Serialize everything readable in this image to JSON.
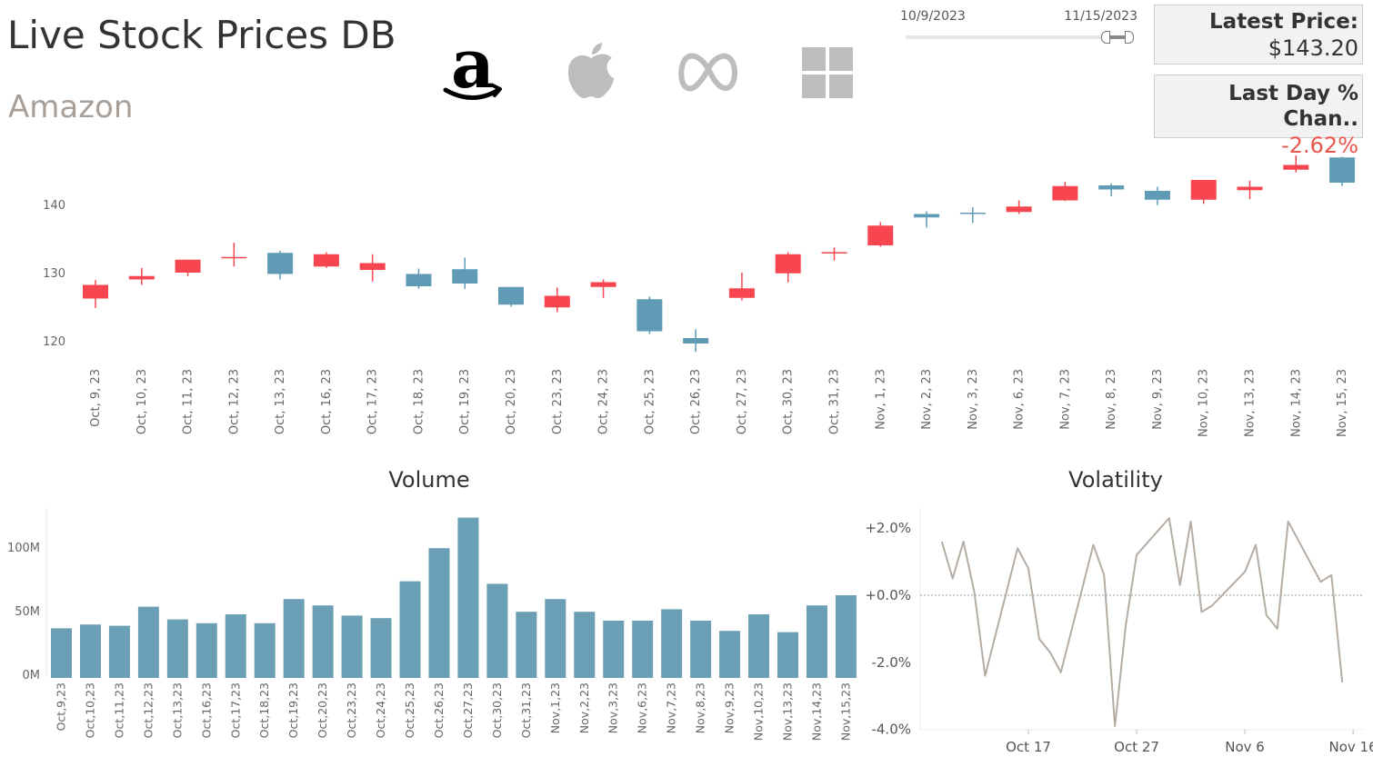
{
  "header": {
    "title": "Live Stock Prices DB",
    "company": "Amazon"
  },
  "logos": [
    {
      "name": "amazon-logo",
      "color": "#000000",
      "selected": true
    },
    {
      "name": "apple-logo",
      "color": "#bdbdbd",
      "selected": false
    },
    {
      "name": "meta-logo",
      "color": "#bdbdbd",
      "selected": false
    },
    {
      "name": "microsoft-logo",
      "color": "#bdbdbd",
      "selected": false
    }
  ],
  "date_filter": {
    "start": "10/9/2023",
    "end": "11/15/2023"
  },
  "kpis": {
    "latest_price": {
      "label": "Latest Price:",
      "value": "$143.20"
    },
    "last_day_change": {
      "label": "Last Day % Chan..",
      "value": "-2.62%",
      "color": "#e8564f"
    }
  },
  "colors": {
    "up": "#f7464f",
    "down": "#5f9bb5",
    "volume_bar": "#6a9fb5",
    "volatility_line": "#b5aca4"
  },
  "chart_data": [
    {
      "type": "candlestick",
      "yticks": [
        "120",
        "130",
        "140"
      ],
      "ylim": [
        116.5,
        148
      ],
      "categories": [
        "Oct, 9, 23",
        "Oct, 10, 23",
        "Oct, 11, 23",
        "Oct, 12, 23",
        "Oct, 13, 23",
        "Oct, 16, 23",
        "Oct, 17, 23",
        "Oct, 18, 23",
        "Oct, 19, 23",
        "Oct, 20, 23",
        "Oct, 23, 23",
        "Oct, 24, 23",
        "Oct, 25, 23",
        "Oct, 26, 23",
        "Oct, 27, 23",
        "Oct, 30, 23",
        "Oct, 31, 23",
        "Nov, 1, 23",
        "Nov, 2, 23",
        "Nov, 3, 23",
        "Nov, 6, 23",
        "Nov, 7, 23",
        "Nov, 8, 23",
        "Nov, 9, 23",
        "Nov, 10, 23",
        "Nov, 13, 23",
        "Nov, 14, 23",
        "Nov, 15, 23"
      ],
      "candles": [
        {
          "open": 126.2,
          "close": 128.2,
          "high": 128.9,
          "low": 124.8,
          "up": true
        },
        {
          "open": 129.0,
          "close": 129.5,
          "high": 130.7,
          "low": 128.2,
          "up": true
        },
        {
          "open": 130.0,
          "close": 131.9,
          "high": 131.9,
          "low": 129.5,
          "up": true
        },
        {
          "open": 132.3,
          "close": 132.3,
          "high": 134.4,
          "low": 130.9,
          "up": true
        },
        {
          "open": 132.9,
          "close": 129.8,
          "high": 133.2,
          "low": 129.0,
          "up": false
        },
        {
          "open": 130.9,
          "close": 132.7,
          "high": 133.0,
          "low": 130.7,
          "up": true
        },
        {
          "open": 130.4,
          "close": 131.4,
          "high": 132.7,
          "low": 128.7,
          "up": true
        },
        {
          "open": 129.8,
          "close": 128.0,
          "high": 130.6,
          "low": 127.6,
          "up": false
        },
        {
          "open": 130.5,
          "close": 128.4,
          "high": 132.2,
          "low": 127.6,
          "up": false
        },
        {
          "open": 127.9,
          "close": 125.3,
          "high": 127.9,
          "low": 125.0,
          "up": false
        },
        {
          "open": 124.9,
          "close": 126.6,
          "high": 127.8,
          "low": 124.2,
          "up": true
        },
        {
          "open": 127.9,
          "close": 128.6,
          "high": 129.0,
          "low": 126.3,
          "up": true
        },
        {
          "open": 126.1,
          "close": 121.4,
          "high": 126.5,
          "low": 121.0,
          "up": false
        },
        {
          "open": 120.4,
          "close": 119.6,
          "high": 121.7,
          "low": 118.4,
          "up": false
        },
        {
          "open": 126.3,
          "close": 127.7,
          "high": 130.0,
          "low": 125.9,
          "up": true
        },
        {
          "open": 129.9,
          "close": 132.7,
          "high": 133.0,
          "low": 128.6,
          "up": true
        },
        {
          "open": 132.9,
          "close": 133.0,
          "high": 133.7,
          "low": 131.8,
          "up": true
        },
        {
          "open": 134.0,
          "close": 136.9,
          "high": 137.4,
          "low": 133.8,
          "up": true
        },
        {
          "open": 138.6,
          "close": 138.1,
          "high": 139.0,
          "low": 136.6,
          "up": false
        },
        {
          "open": 138.8,
          "close": 138.6,
          "high": 139.6,
          "low": 137.3,
          "up": false
        },
        {
          "open": 138.9,
          "close": 139.7,
          "high": 140.6,
          "low": 138.6,
          "up": true
        },
        {
          "open": 140.6,
          "close": 142.7,
          "high": 143.3,
          "low": 140.5,
          "up": true
        },
        {
          "open": 142.8,
          "close": 142.2,
          "high": 143.1,
          "low": 141.2,
          "up": false
        },
        {
          "open": 142.0,
          "close": 140.7,
          "high": 142.6,
          "low": 139.9,
          "up": false
        },
        {
          "open": 140.7,
          "close": 143.6,
          "high": 143.6,
          "low": 140.1,
          "up": true
        },
        {
          "open": 142.1,
          "close": 142.6,
          "high": 143.5,
          "low": 140.8,
          "up": true
        },
        {
          "open": 145.1,
          "close": 145.8,
          "high": 147.2,
          "low": 144.7,
          "up": true
        },
        {
          "open": 146.9,
          "close": 143.2,
          "high": 147.0,
          "low": 142.7,
          "up": false
        }
      ]
    },
    {
      "type": "bar",
      "title": "Volume",
      "categories": [
        "Oct,9,23",
        "Oct,10,23",
        "Oct,11,23",
        "Oct,12,23",
        "Oct,13,23",
        "Oct,16,23",
        "Oct,17,23",
        "Oct,18,23",
        "Oct,19,23",
        "Oct,20,23",
        "Oct,23,23",
        "Oct,24,23",
        "Oct,25,23",
        "Oct,26,23",
        "Oct,27,23",
        "Oct,30,23",
        "Oct,31,23",
        "Nov,1,23",
        "Nov,2,23",
        "Nov,3,23",
        "Nov,6,23",
        "Nov,7,23",
        "Nov,8,23",
        "Nov,9,23",
        "Nov,10,23",
        "Nov,13,23",
        "Nov,14,23",
        "Nov,15,23"
      ],
      "values": [
        39,
        42,
        41,
        56,
        46,
        43,
        50,
        43,
        62,
        57,
        49,
        47,
        76,
        102,
        126,
        74,
        52,
        62,
        52,
        45,
        45,
        54,
        45,
        37,
        50,
        36,
        57,
        65
      ],
      "yticks": [
        "0M",
        "50M",
        "100M"
      ],
      "ylim": [
        0,
        128
      ]
    },
    {
      "type": "line",
      "title": "Volatility",
      "x": [
        "2023-10-09",
        "2023-10-10",
        "2023-10-11",
        "2023-10-12",
        "2023-10-13",
        "2023-10-16",
        "2023-10-17",
        "2023-10-18",
        "2023-10-19",
        "2023-10-20",
        "2023-10-23",
        "2023-10-24",
        "2023-10-25",
        "2023-10-26",
        "2023-10-27",
        "2023-10-30",
        "2023-10-31",
        "2023-11-01",
        "2023-11-02",
        "2023-11-03",
        "2023-11-06",
        "2023-11-07",
        "2023-11-08",
        "2023-11-09",
        "2023-11-10",
        "2023-11-13",
        "2023-11-14",
        "2023-11-15"
      ],
      "values": [
        1.6,
        0.5,
        1.6,
        0.1,
        -2.4,
        1.4,
        0.8,
        -1.3,
        -1.7,
        -2.3,
        1.5,
        0.6,
        -3.9,
        -0.9,
        1.2,
        2.3,
        0.3,
        2.2,
        -0.5,
        -0.3,
        0.7,
        1.5,
        -0.6,
        -1.0,
        2.2,
        0.4,
        0.6,
        -2.6
      ],
      "xticks": [
        "Oct 17",
        "Oct 27",
        "Nov 6",
        "Nov 16"
      ],
      "xtick_dates": [
        "2023-10-17",
        "2023-10-27",
        "2023-11-06",
        "2023-11-16"
      ],
      "yticks": [
        "+2.0%",
        "+0.0%",
        "-2.0%",
        "-4.0%"
      ],
      "ytick_values": [
        2,
        0,
        -2,
        -4
      ],
      "ylim": [
        -4.3,
        2.6
      ],
      "xlim": [
        "2023-10-07",
        "2023-11-17"
      ]
    }
  ]
}
